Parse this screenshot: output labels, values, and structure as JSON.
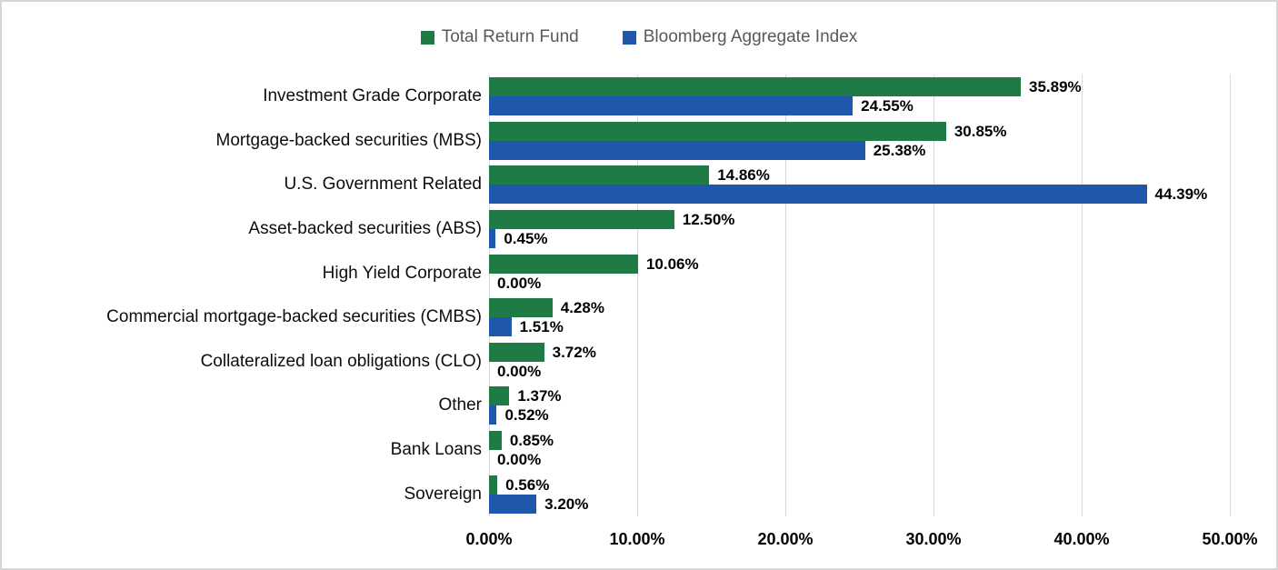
{
  "chart_data": {
    "type": "bar",
    "orientation": "horizontal",
    "title": "",
    "xlabel": "",
    "ylabel": "",
    "xlim": [
      0,
      50
    ],
    "grid": "vertical",
    "legend_position": "top",
    "categories": [
      "Investment Grade Corporate",
      "Mortgage-backed securities (MBS)",
      "U.S. Government Related",
      "Asset-backed securities (ABS)",
      "High Yield Corporate",
      "Commercial mortgage-backed securities (CMBS)",
      "Collateralized loan obligations (CLO)",
      "Other",
      "Bank Loans",
      "Sovereign"
    ],
    "series": [
      {
        "name": "Total Return Fund",
        "color": "#1e7b45",
        "values": [
          35.89,
          30.85,
          14.86,
          12.5,
          10.06,
          4.28,
          3.72,
          1.37,
          0.85,
          0.56
        ],
        "labels": [
          "35.89%",
          "30.85%",
          "14.86%",
          "12.50%",
          "10.06%",
          "4.28%",
          "3.72%",
          "1.37%",
          "0.85%",
          "0.56%"
        ]
      },
      {
        "name": "Bloomberg Aggregate Index",
        "color": "#1e57ac",
        "values": [
          24.55,
          25.38,
          44.39,
          0.45,
          0.0,
          1.51,
          0.0,
          0.52,
          0.0,
          3.2
        ],
        "labels": [
          "24.55%",
          "25.38%",
          "44.39%",
          "0.45%",
          "0.00%",
          "1.51%",
          "0.00%",
          "0.52%",
          "0.00%",
          "3.20%"
        ]
      }
    ],
    "x_ticks": [
      {
        "value": 0,
        "label": "0.00%"
      },
      {
        "value": 10,
        "label": "10.00%"
      },
      {
        "value": 20,
        "label": "20.00%"
      },
      {
        "value": 30,
        "label": "30.00%"
      },
      {
        "value": 40,
        "label": "40.00%"
      },
      {
        "value": 50,
        "label": "50.00%"
      }
    ]
  },
  "styles": {
    "grid_color": "#d9d9d9",
    "border_color": "#d6d6d6",
    "legend_text_color": "#595959",
    "category_label_color": "#0d0d0d",
    "value_label_color": "#000000"
  }
}
